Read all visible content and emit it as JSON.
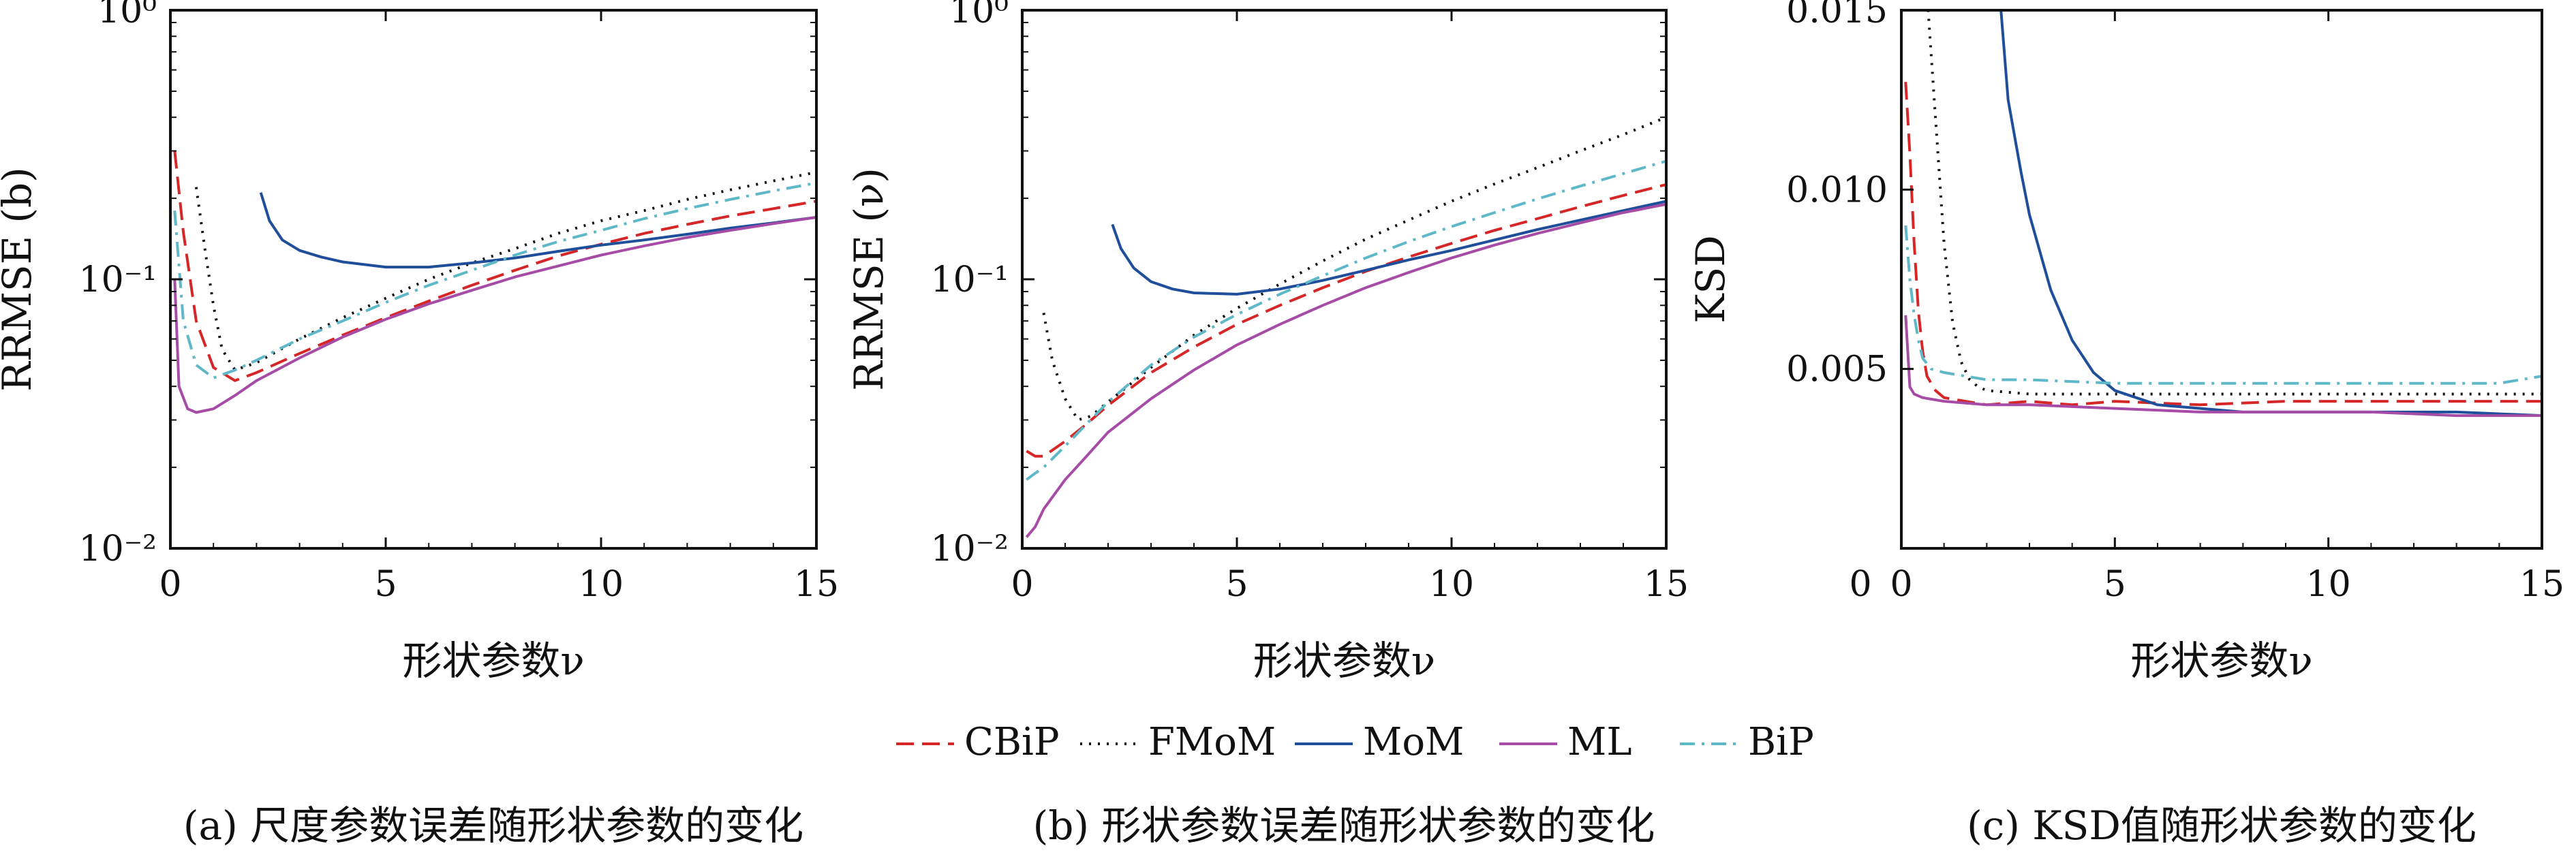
{
  "chart_data": [
    {
      "type": "line",
      "caption": "(a) 尺度参数误差随形状参数的变化",
      "xlabel": "形状参数ν",
      "ylabel": "RRMSE (b)",
      "xlim": [
        0,
        15
      ],
      "ylim": [
        0.01,
        1
      ],
      "yscale": "log",
      "xticks": [
        "0",
        "5",
        "10",
        "15"
      ],
      "yticks": [
        "10⁻²",
        "10⁻¹",
        "10⁰"
      ],
      "series": [
        {
          "name": "CBiP",
          "x": [
            0.1,
            0.3,
            0.6,
            1.0,
            1.5,
            2.0,
            3.0,
            4.0,
            5.0,
            6.0,
            7.0,
            8.0,
            9.0,
            10.0,
            11.0,
            12.0,
            13.0,
            14.0,
            15.0
          ],
          "y": [
            0.3,
            0.15,
            0.07,
            0.047,
            0.042,
            0.045,
            0.053,
            0.062,
            0.072,
            0.083,
            0.095,
            0.108,
            0.122,
            0.135,
            0.148,
            0.16,
            0.172,
            0.183,
            0.195
          ]
        },
        {
          "name": "FMoM",
          "x": [
            0.6,
            0.8,
            1.0,
            1.2,
            1.5,
            2.0,
            3.0,
            4.0,
            5.0,
            6.0,
            7.0,
            8.0,
            9.0,
            10.0,
            11.0,
            12.0,
            13.0,
            14.0,
            15.0
          ],
          "y": [
            0.22,
            0.13,
            0.08,
            0.055,
            0.046,
            0.049,
            0.06,
            0.072,
            0.085,
            0.1,
            0.115,
            0.13,
            0.148,
            0.165,
            0.18,
            0.198,
            0.215,
            0.232,
            0.25
          ]
        },
        {
          "name": "MoM",
          "x": [
            2.1,
            2.3,
            2.6,
            3.0,
            3.5,
            4.0,
            5.0,
            6.0,
            7.0,
            8.0,
            9.0,
            10.0,
            11.0,
            12.0,
            13.0,
            14.0,
            15.0
          ],
          "y": [
            0.21,
            0.165,
            0.14,
            0.128,
            0.121,
            0.116,
            0.111,
            0.111,
            0.115,
            0.12,
            0.127,
            0.134,
            0.14,
            0.147,
            0.155,
            0.162,
            0.17
          ]
        },
        {
          "name": "ML",
          "x": [
            0.1,
            0.2,
            0.4,
            0.6,
            1.0,
            1.5,
            2.0,
            3.0,
            4.0,
            5.0,
            6.0,
            7.0,
            8.0,
            9.0,
            10.0,
            11.0,
            12.0,
            13.0,
            14.0,
            15.0
          ],
          "y": [
            0.1,
            0.04,
            0.033,
            0.032,
            0.033,
            0.037,
            0.042,
            0.051,
            0.061,
            0.071,
            0.081,
            0.091,
            0.102,
            0.112,
            0.123,
            0.133,
            0.143,
            0.152,
            0.161,
            0.17
          ]
        },
        {
          "name": "BiP",
          "x": [
            0.1,
            0.3,
            0.6,
            1.0,
            1.5,
            2.0,
            3.0,
            4.0,
            5.0,
            6.0,
            7.0,
            8.0,
            9.0,
            10.0,
            11.0,
            12.0,
            13.0,
            14.0,
            15.0
          ],
          "y": [
            0.18,
            0.07,
            0.048,
            0.043,
            0.046,
            0.05,
            0.06,
            0.07,
            0.082,
            0.095,
            0.108,
            0.123,
            0.138,
            0.152,
            0.168,
            0.183,
            0.198,
            0.213,
            0.228
          ]
        }
      ]
    },
    {
      "type": "line",
      "caption": "(b) 形状参数误差随形状参数的变化",
      "xlabel": "形状参数ν",
      "ylabel": "RRMSE (ν)",
      "xlim": [
        0,
        15
      ],
      "ylim": [
        0.01,
        1
      ],
      "yscale": "log",
      "xticks": [
        "0",
        "5",
        "10",
        "15"
      ],
      "yticks": [
        "10⁻²",
        "10⁻¹",
        "10⁰"
      ],
      "series": [
        {
          "name": "CBiP",
          "x": [
            0.1,
            0.3,
            0.5,
            1.0,
            1.5,
            2.0,
            3.0,
            4.0,
            5.0,
            6.0,
            7.0,
            8.0,
            9.0,
            10.0,
            11.0,
            12.0,
            13.0,
            14.0,
            15.0
          ],
          "y": [
            0.023,
            0.022,
            0.022,
            0.025,
            0.029,
            0.034,
            0.045,
            0.056,
            0.068,
            0.08,
            0.093,
            0.107,
            0.121,
            0.136,
            0.152,
            0.168,
            0.186,
            0.205,
            0.225
          ]
        },
        {
          "name": "FMoM",
          "x": [
            0.5,
            0.7,
            1.0,
            1.3,
            1.6,
            2.0,
            3.0,
            4.0,
            5.0,
            6.0,
            7.0,
            8.0,
            9.0,
            10.0,
            11.0,
            12.0,
            13.0,
            14.0,
            15.0
          ],
          "y": [
            0.075,
            0.05,
            0.036,
            0.03,
            0.031,
            0.035,
            0.047,
            0.062,
            0.078,
            0.096,
            0.117,
            0.141,
            0.166,
            0.195,
            0.226,
            0.26,
            0.3,
            0.345,
            0.4
          ]
        },
        {
          "name": "MoM",
          "x": [
            2.1,
            2.3,
            2.6,
            3.0,
            3.5,
            4.0,
            5.0,
            6.0,
            7.0,
            8.0,
            9.0,
            10.0,
            11.0,
            12.0,
            13.0,
            14.0,
            15.0
          ],
          "y": [
            0.16,
            0.13,
            0.11,
            0.098,
            0.092,
            0.089,
            0.088,
            0.092,
            0.099,
            0.108,
            0.118,
            0.128,
            0.14,
            0.153,
            0.166,
            0.18,
            0.195
          ]
        },
        {
          "name": "ML",
          "x": [
            0.1,
            0.3,
            0.5,
            1.0,
            1.5,
            2.0,
            3.0,
            4.0,
            5.0,
            6.0,
            7.0,
            8.0,
            9.0,
            10.0,
            11.0,
            12.0,
            13.0,
            14.0,
            15.0
          ],
          "y": [
            0.011,
            0.012,
            0.014,
            0.018,
            0.022,
            0.027,
            0.036,
            0.046,
            0.057,
            0.068,
            0.08,
            0.093,
            0.106,
            0.12,
            0.134,
            0.148,
            0.162,
            0.177,
            0.19
          ]
        },
        {
          "name": "BiP",
          "x": [
            0.1,
            0.3,
            0.5,
            1.0,
            1.5,
            2.0,
            3.0,
            4.0,
            5.0,
            6.0,
            7.0,
            8.0,
            9.0,
            10.0,
            11.0,
            12.0,
            13.0,
            14.0,
            15.0
          ],
          "y": [
            0.018,
            0.019,
            0.02,
            0.024,
            0.029,
            0.035,
            0.048,
            0.061,
            0.074,
            0.088,
            0.103,
            0.12,
            0.138,
            0.157,
            0.177,
            0.199,
            0.222,
            0.247,
            0.275
          ]
        }
      ]
    },
    {
      "type": "line",
      "caption": "(c) KSD值随形状参数的变化",
      "xlabel": "形状参数ν",
      "ylabel": "KSD",
      "xlim": [
        0,
        15
      ],
      "ylim": [
        0,
        0.015
      ],
      "yscale": "linear",
      "xticks": [
        "0",
        "5",
        "10",
        "15"
      ],
      "yticks": [
        "0.005",
        "0.010",
        "0.015"
      ],
      "series": [
        {
          "name": "CBiP",
          "x": [
            0.1,
            0.2,
            0.3,
            0.4,
            0.5,
            0.6,
            0.8,
            1.0,
            1.5,
            2.0,
            3.0,
            4.0,
            5.0,
            7.0,
            9.0,
            11.0,
            13.0,
            15.0
          ],
          "y": [
            0.013,
            0.011,
            0.0085,
            0.0066,
            0.0055,
            0.0048,
            0.0044,
            0.0042,
            0.0041,
            0.004,
            0.0041,
            0.004,
            0.0041,
            0.004,
            0.0041,
            0.0041,
            0.0041,
            0.0041
          ]
        },
        {
          "name": "FMoM",
          "x": [
            0.6,
            0.8,
            1.0,
            1.2,
            1.4,
            1.6,
            1.8,
            2.0,
            3.0,
            5.0,
            7.0,
            9.0,
            11.0,
            13.0,
            15.0
          ],
          "y": [
            0.0155,
            0.012,
            0.0085,
            0.0063,
            0.0052,
            0.0047,
            0.0045,
            0.0044,
            0.0043,
            0.0043,
            0.0043,
            0.0043,
            0.0043,
            0.0043,
            0.0043
          ]
        },
        {
          "name": "MoM",
          "x": [
            2.3,
            2.5,
            2.8,
            3.0,
            3.5,
            4.0,
            4.5,
            5.0,
            5.5,
            6.0,
            7.0,
            8.0,
            9.0,
            11.0,
            13.0,
            15.0
          ],
          "y": [
            0.0155,
            0.0125,
            0.0105,
            0.0093,
            0.0072,
            0.0058,
            0.0049,
            0.0044,
            0.0042,
            0.004,
            0.0039,
            0.0038,
            0.0038,
            0.0038,
            0.0038,
            0.0037
          ]
        },
        {
          "name": "ML",
          "x": [
            0.1,
            0.2,
            0.3,
            0.5,
            1.0,
            2.0,
            3.0,
            5.0,
            7.0,
            9.0,
            11.0,
            13.0,
            15.0
          ],
          "y": [
            0.0065,
            0.0045,
            0.0043,
            0.0042,
            0.0041,
            0.004,
            0.004,
            0.0039,
            0.0038,
            0.0038,
            0.0038,
            0.0037,
            0.0037
          ]
        },
        {
          "name": "BiP",
          "x": [
            0.1,
            0.2,
            0.3,
            0.4,
            0.5,
            0.7,
            1.0,
            1.5,
            2.0,
            3.0,
            5.0,
            7.0,
            9.0,
            11.0,
            13.0,
            14.0,
            15.0
          ],
          "y": [
            0.009,
            0.0075,
            0.0065,
            0.0058,
            0.0053,
            0.005,
            0.0049,
            0.0048,
            0.0047,
            0.0047,
            0.0046,
            0.0046,
            0.0046,
            0.0046,
            0.0046,
            0.0046,
            0.0048
          ]
        }
      ]
    }
  ],
  "legend": {
    "placement": "bottom-center",
    "items": [
      {
        "label": "CBiP",
        "color": "#d62728",
        "dash": "dashed"
      },
      {
        "label": "FMoM",
        "color": "#111111",
        "dash": "dotted"
      },
      {
        "label": "MoM",
        "color": "#1f4e9a",
        "dash": "solid"
      },
      {
        "label": "ML",
        "color": "#a64ca6",
        "dash": "solid"
      },
      {
        "label": "BiP",
        "color": "#5fb8c8",
        "dash": "dashdot"
      }
    ]
  }
}
